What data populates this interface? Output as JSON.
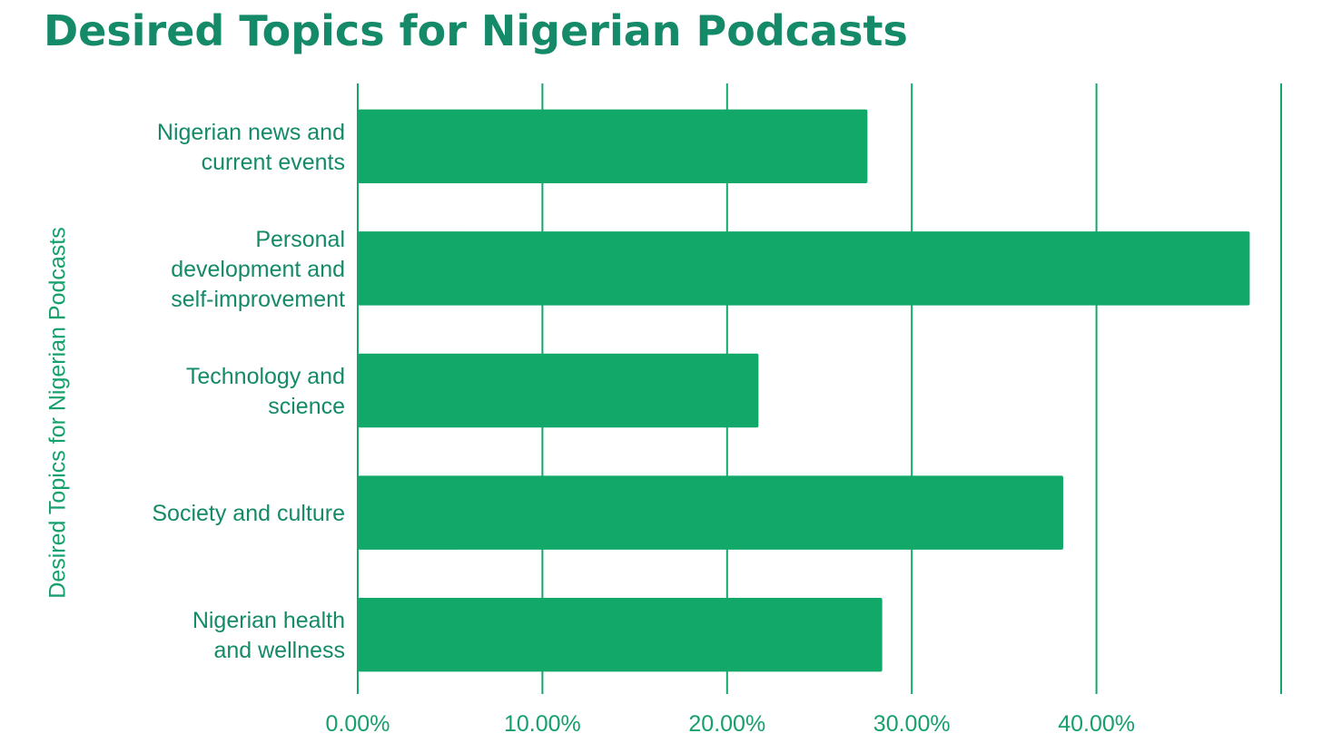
{
  "chart_data": {
    "type": "bar",
    "orientation": "horizontal",
    "title": "Desired Topics for Nigerian Podcasts",
    "ylabel": "Desired Topics for Nigerian Podcasts",
    "xlabel": "",
    "categories": [
      [
        "Nigerian news and",
        "current events"
      ],
      [
        "Personal",
        "development and",
        "self-improvement"
      ],
      [
        "Technology and",
        "science"
      ],
      [
        "Society and culture"
      ],
      [
        "Nigerian health",
        "and wellness"
      ]
    ],
    "values": [
      27.6,
      48.3,
      21.7,
      38.2,
      28.4
    ],
    "value_unit": "%",
    "xlim": [
      0,
      50
    ],
    "x_ticks": [
      "0.00%",
      "10.00%",
      "20.00%",
      "30.00%",
      "40.00%"
    ],
    "grid": true,
    "bar_color": "#12a86a",
    "title_color": "#148a68",
    "label_color": "#148a68",
    "axis_color": "#16a06c"
  }
}
